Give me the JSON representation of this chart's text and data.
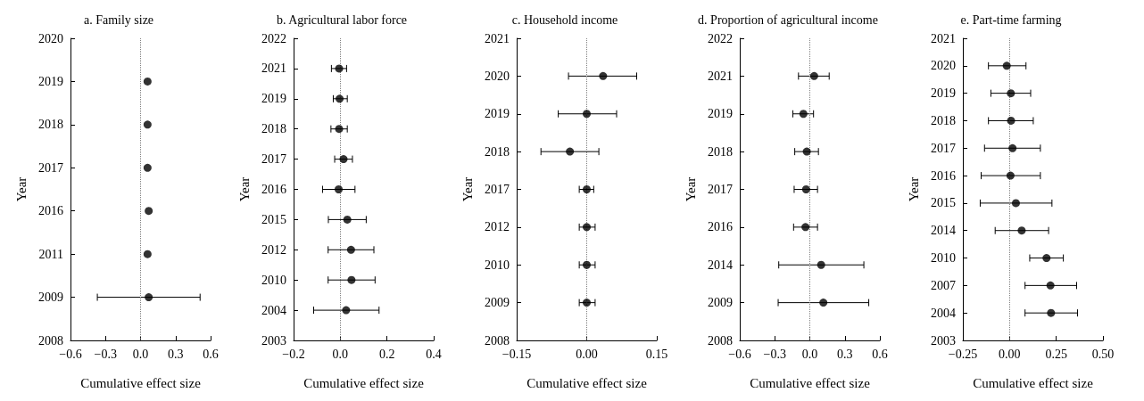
{
  "chart_data": [
    {
      "type": "scatter",
      "orientation": "horizontal",
      "title": "a. Family size",
      "xlabel": "Cumulative effect size",
      "ylabel": "Year",
      "categories": [
        "2020",
        "2019",
        "2018",
        "2017",
        "2016",
        "2011",
        "2009",
        "2008"
      ],
      "color": "#000000",
      "values": [
        null,
        0.06,
        0.06,
        0.06,
        0.07,
        0.06,
        0.07,
        null
      ],
      "errors": [
        null,
        null,
        null,
        null,
        null,
        null,
        [
          -0.37,
          0.51
        ],
        null
      ],
      "xlim": [
        -0.6,
        0.6
      ],
      "xticks": [
        {
          "value": -0.6,
          "label": "−0.6"
        },
        {
          "value": -0.3,
          "label": "−0.3"
        },
        {
          "value": 0,
          "label": "0.0"
        },
        {
          "value": 0.3,
          "label": "0.3"
        },
        {
          "value": 0.6,
          "label": "0.6"
        }
      ],
      "ref_lines": [
        {
          "axis": "x",
          "value": 0,
          "color": "#808080",
          "line_style": "dotted"
        }
      ],
      "marker": "circle"
    },
    {
      "type": "scatter",
      "orientation": "horizontal",
      "title": "b. Agricultural labor force",
      "xlabel": "Cumulative effect size",
      "ylabel": "Year",
      "categories": [
        "2022",
        "2021",
        "2019",
        "2018",
        "2017",
        "2016",
        "2015",
        "2012",
        "2010",
        "2004",
        "2003"
      ],
      "color": "#000000",
      "values": [
        null,
        -0.005,
        -0.003,
        -0.005,
        0.014,
        -0.007,
        0.03,
        0.046,
        0.048,
        0.025,
        null
      ],
      "errors": [
        null,
        [
          -0.038,
          0.027
        ],
        [
          -0.03,
          0.03
        ],
        [
          -0.04,
          0.03
        ],
        [
          -0.024,
          0.052
        ],
        [
          -0.076,
          0.063
        ],
        [
          -0.051,
          0.111
        ],
        [
          -0.052,
          0.144
        ],
        [
          -0.052,
          0.149
        ],
        [
          -0.114,
          0.166
        ],
        null
      ],
      "xlim": [
        -0.2,
        0.4
      ],
      "xticks": [
        {
          "value": -0.2,
          "label": "−0.2"
        },
        {
          "value": 0,
          "label": "0.0"
        },
        {
          "value": 0.2,
          "label": "0.2"
        },
        {
          "value": 0.4,
          "label": "0.4"
        }
      ],
      "ref_lines": [
        {
          "axis": "x",
          "value": 0,
          "color": "#808080",
          "line_style": "dotted"
        }
      ],
      "marker": "circle"
    },
    {
      "type": "scatter",
      "orientation": "horizontal",
      "title": "c. Household income",
      "xlabel": "Cumulative effect size",
      "ylabel": "Year",
      "categories": [
        "2021",
        "2020",
        "2019",
        "2018",
        "2017",
        "2012",
        "2010",
        "2009",
        "2008"
      ],
      "color": "#000000",
      "values": [
        null,
        0.035,
        0.0,
        -0.036,
        0.0,
        0.0,
        0.0,
        0.0,
        null
      ],
      "errors": [
        null,
        [
          -0.039,
          0.107
        ],
        [
          -0.061,
          0.064
        ],
        [
          -0.098,
          0.026
        ],
        [
          -0.016,
          0.015
        ],
        [
          -0.016,
          0.018
        ],
        [
          -0.016,
          0.018
        ],
        [
          -0.016,
          0.018
        ],
        null
      ],
      "xlim": [
        -0.15,
        0.15
      ],
      "xticks": [
        {
          "value": -0.15,
          "label": "−0.15"
        },
        {
          "value": 0,
          "label": "0.00"
        },
        {
          "value": 0.15,
          "label": "0.15"
        }
      ],
      "ref_lines": [
        {
          "axis": "x",
          "value": 0,
          "color": "#808080",
          "line_style": "dotted"
        }
      ],
      "marker": "circle"
    },
    {
      "type": "scatter",
      "orientation": "horizontal",
      "title": "d. Proportion of agricultural income",
      "xlabel": "Cumulative effect size",
      "ylabel": "Year",
      "categories": [
        "2022",
        "2021",
        "2019",
        "2018",
        "2017",
        "2016",
        "2014",
        "2009",
        "2008"
      ],
      "color": "#000000",
      "values": [
        null,
        0.037,
        -0.055,
        -0.026,
        -0.032,
        -0.037,
        0.097,
        0.116,
        null
      ],
      "errors": [
        null,
        [
          -0.097,
          0.166
        ],
        [
          -0.145,
          0.032
        ],
        [
          -0.129,
          0.074
        ],
        [
          -0.134,
          0.066
        ],
        [
          -0.139,
          0.066
        ],
        [
          -0.266,
          0.463
        ],
        [
          -0.271,
          0.505
        ],
        null
      ],
      "xlim": [
        -0.6,
        0.6
      ],
      "xticks": [
        {
          "value": -0.6,
          "label": "−0.6"
        },
        {
          "value": -0.3,
          "label": "−0.3"
        },
        {
          "value": 0,
          "label": "0.0"
        },
        {
          "value": 0.3,
          "label": "0.3"
        },
        {
          "value": 0.6,
          "label": "0.6"
        }
      ],
      "ref_lines": [
        {
          "axis": "x",
          "value": 0,
          "color": "#808080",
          "line_style": "dotted"
        }
      ],
      "marker": "circle"
    },
    {
      "type": "scatter",
      "orientation": "horizontal",
      "title": "e. Part-time farming",
      "xlabel": "Cumulative effect size",
      "ylabel": "Year",
      "categories": [
        "2021",
        "2020",
        "2019",
        "2018",
        "2017",
        "2016",
        "2015",
        "2014",
        "2010",
        "2007",
        "2004",
        "2003"
      ],
      "color": "#000000",
      "values": [
        null,
        -0.015,
        0.007,
        0.008,
        0.016,
        0.005,
        0.034,
        0.065,
        0.198,
        0.219,
        0.222,
        null
      ],
      "errors": [
        null,
        [
          -0.113,
          0.088
        ],
        [
          -0.1,
          0.113
        ],
        [
          -0.113,
          0.127
        ],
        [
          -0.134,
          0.165
        ],
        [
          -0.152,
          0.165
        ],
        [
          -0.157,
          0.227
        ],
        [
          -0.077,
          0.209
        ],
        [
          0.108,
          0.288
        ],
        [
          0.083,
          0.359
        ],
        [
          0.083,
          0.364
        ],
        null
      ],
      "xlim": [
        -0.25,
        0.5
      ],
      "xticks": [
        {
          "value": -0.25,
          "label": "−0.25"
        },
        {
          "value": 0,
          "label": "0.00"
        },
        {
          "value": 0.25,
          "label": "0.25"
        },
        {
          "value": 0.5,
          "label": "0.50"
        }
      ],
      "ref_lines": [
        {
          "axis": "x",
          "value": 0,
          "color": "#808080",
          "line_style": "dotted"
        }
      ],
      "marker": "circle"
    }
  ]
}
